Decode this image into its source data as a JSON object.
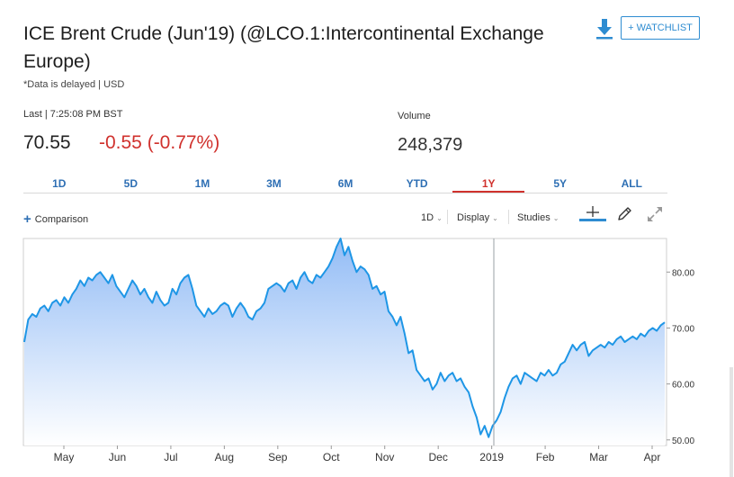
{
  "header": {
    "title": "ICE Brent Crude (Jun'19) (@LCO.1:Intercontinental Exchange Europe)",
    "delayed_note": "*Data is delayed | USD",
    "watchlist_label": "+ WATCHLIST"
  },
  "quote": {
    "last_label": "Last | 7:25:08 PM BST",
    "last_price": "70.55",
    "change": "-0.55 (-0.77%)",
    "volume_label": "Volume",
    "volume_value": "248,379"
  },
  "colors": {
    "negative": "#d0312d",
    "accent": "#2e6fb4",
    "line": "#1e96e6"
  },
  "ranges": {
    "tabs": [
      {
        "label": "1D"
      },
      {
        "label": "5D"
      },
      {
        "label": "1M"
      },
      {
        "label": "3M"
      },
      {
        "label": "6M"
      },
      {
        "label": "YTD"
      },
      {
        "label": "1Y"
      },
      {
        "label": "5Y"
      },
      {
        "label": "ALL"
      }
    ],
    "active": "1Y"
  },
  "toolbar": {
    "comparison_label": "Comparison",
    "interval_label": "1D",
    "display_label": "Display",
    "studies_label": "Studies"
  },
  "chart_data": {
    "type": "area",
    "x_tick_labels": [
      "May",
      "Jun",
      "Jul",
      "Aug",
      "Sep",
      "Oct",
      "Nov",
      "Dec",
      "2019",
      "Feb",
      "Mar",
      "Apr"
    ],
    "y_tick_labels": [
      "80.00",
      "70.00",
      "60.00",
      "50.00"
    ],
    "ylim": [
      49,
      86
    ],
    "y_ticks": [
      80,
      70,
      60,
      50
    ],
    "grid": false,
    "series": [
      {
        "values": [
          67.5,
          71.5,
          72.5,
          72.0,
          73.5,
          74.0,
          73.0,
          74.5,
          75.0,
          74.0,
          75.5,
          74.5,
          76.0,
          77.0,
          78.5,
          77.5,
          79.0,
          78.5,
          79.5,
          80.0,
          79.0,
          78.0,
          79.5,
          77.5,
          76.5,
          75.5,
          77.0,
          78.5,
          77.5,
          76.0,
          77.0,
          75.5,
          74.5,
          76.5,
          75.0,
          74.0,
          74.5,
          77.0,
          76.0,
          78.0,
          79.0,
          79.5,
          77.0,
          74.0,
          73.0,
          72.0,
          73.5,
          72.5,
          73.0,
          74.0,
          74.5,
          74.0,
          72.0,
          73.5,
          74.5,
          73.5,
          72.0,
          71.5,
          73.0,
          73.5,
          74.5,
          77.0,
          77.5,
          78.0,
          77.5,
          76.5,
          78.0,
          78.5,
          77.0,
          79.0,
          80.0,
          78.5,
          78.0,
          79.5,
          79.0,
          80.0,
          81.0,
          82.5,
          84.5,
          86.0,
          83.0,
          84.5,
          82.0,
          80.0,
          81.0,
          80.5,
          79.5,
          77.0,
          77.5,
          76.0,
          76.5,
          73.0,
          72.0,
          70.5,
          72.0,
          69.0,
          65.5,
          66.0,
          62.5,
          61.5,
          60.5,
          61.0,
          59.0,
          60.0,
          62.0,
          60.5,
          61.5,
          62.0,
          60.5,
          61.0,
          59.5,
          58.5,
          56.0,
          54.0,
          51.0,
          52.5,
          50.5,
          52.5,
          53.5,
          55.0,
          57.5,
          59.5,
          61.0,
          61.5,
          60.0,
          62.0,
          61.5,
          61.0,
          60.5,
          62.0,
          61.5,
          62.5,
          61.5,
          62.0,
          63.5,
          64.0,
          65.5,
          67.0,
          66.0,
          67.0,
          67.5,
          65.0,
          66.0,
          66.5,
          67.0,
          66.5,
          67.5,
          67.0,
          68.0,
          68.5,
          67.5,
          68.0,
          68.5,
          68.0,
          69.0,
          68.5,
          69.5,
          70.0,
          69.5,
          70.5,
          71.0
        ]
      }
    ]
  }
}
